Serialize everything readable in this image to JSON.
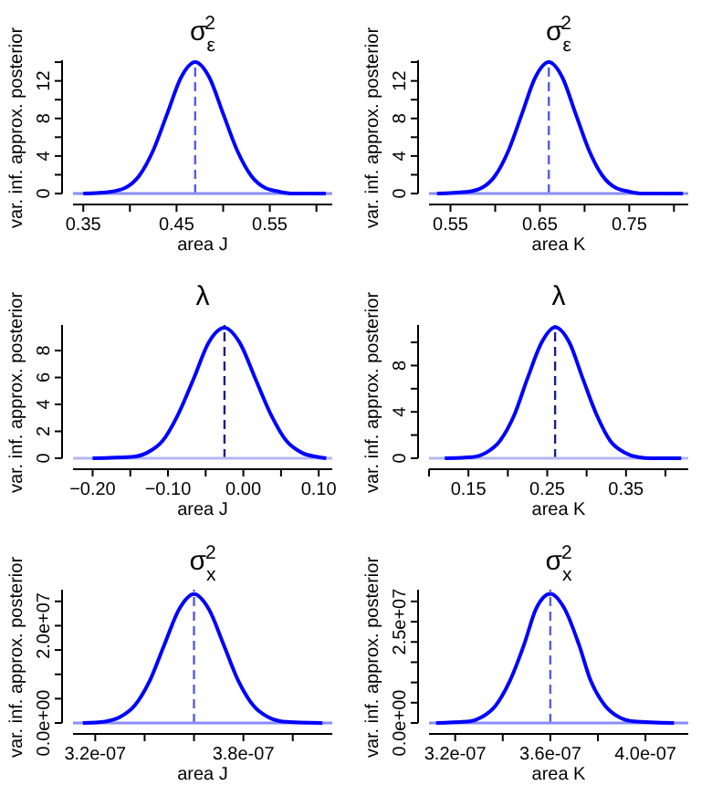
{
  "chart_data": [
    {
      "type": "line",
      "title": "σ$_{ε}$$^{2}$",
      "xlabel": "area J",
      "ylabel": "var. inf. approx. posterior",
      "x": [
        0.35,
        0.38,
        0.395,
        0.41,
        0.425,
        0.44,
        0.455,
        0.47,
        0.485,
        0.5,
        0.515,
        0.53,
        0.545,
        0.56,
        0.575,
        0.61
      ],
      "series": [
        {
          "color": "#0000ff",
          "values": [
            0,
            0.2,
            0.6,
            1.9,
            4.6,
            8.5,
            12.4,
            14,
            12.4,
            8.5,
            4.6,
            1.9,
            0.6,
            0.2,
            0,
            0
          ]
        }
      ],
      "xlim": [
        0.339,
        0.617
      ],
      "xticks": [
        0.35,
        {
          "value": 0.4,
          "label": null
        },
        0.45,
        {
          "value": 0.5,
          "label": null
        },
        0.55,
        {
          "value": 0.6,
          "label": null
        }
      ],
      "ylim": [
        0,
        14.2
      ],
      "yticks": [
        0,
        {
          "value": 2,
          "label": null
        },
        4,
        {
          "value": 6,
          "label": null
        },
        8,
        {
          "value": 10,
          "label": null
        },
        12,
        {
          "value": 14,
          "label": null
        }
      ],
      "ref_lines": [
        {
          "axis": "x",
          "value": 0.47,
          "color": "#5a5ae0",
          "line_style": "dashed"
        },
        {
          "axis": "y",
          "value": 0,
          "color": "#8c8cff"
        }
      ]
    },
    {
      "type": "line",
      "title": "σ$_{ε}$$^{2}$",
      "xlabel": "area K",
      "ylabel": "var. inf. approx. posterior",
      "x": [
        0.535,
        0.57,
        0.585,
        0.6,
        0.615,
        0.63,
        0.645,
        0.66,
        0.675,
        0.69,
        0.705,
        0.72,
        0.735,
        0.75,
        0.765,
        0.81
      ],
      "series": [
        {
          "color": "#0000ff",
          "values": [
            0,
            0.2,
            0.6,
            1.9,
            4.6,
            8.5,
            12.4,
            14,
            12.4,
            8.5,
            4.6,
            1.9,
            0.6,
            0.2,
            0,
            0
          ]
        }
      ],
      "xlim": [
        0.526,
        0.816
      ],
      "xticks": [
        0.55,
        {
          "value": 0.6,
          "label": null
        },
        0.65,
        {
          "value": 0.7,
          "label": null
        },
        0.75,
        {
          "value": 0.8,
          "label": null
        }
      ],
      "ylim": [
        0,
        14.2
      ],
      "yticks": [
        0,
        {
          "value": 2,
          "label": null
        },
        4,
        {
          "value": 6,
          "label": null
        },
        8,
        {
          "value": 10,
          "label": null
        },
        12,
        {
          "value": 14,
          "label": null
        }
      ],
      "ref_lines": [
        {
          "axis": "x",
          "value": 0.66,
          "color": "#5a5ae0",
          "line_style": "dashed"
        },
        {
          "axis": "y",
          "value": 0,
          "color": "#8c8cff"
        }
      ]
    },
    {
      "type": "line",
      "title": "λ",
      "xlabel": "area J",
      "ylabel": "var. inf. approx. posterior",
      "x": [
        -0.2,
        -0.148,
        -0.128,
        -0.107,
        -0.087,
        -0.066,
        -0.046,
        -0.025,
        -0.005,
        0.016,
        0.037,
        0.057,
        0.078,
        0.098,
        0.11
      ],
      "series": [
        {
          "color": "#0000ff",
          "values": [
            0,
            0.1,
            0.4,
            1.3,
            3.2,
            5.9,
            8.6,
            9.7,
            8.6,
            5.9,
            3.2,
            1.3,
            0.4,
            0.1,
            0
          ]
        }
      ],
      "xlim": [
        -0.226,
        0.118
      ],
      "xticks": [
        {
          "value": -0.2,
          "label": "−0.20"
        },
        {
          "value": -0.15,
          "label": null
        },
        {
          "value": -0.1,
          "label": "−0.10"
        },
        {
          "value": -0.05,
          "label": null
        },
        {
          "value": 0,
          "label": "0.00"
        },
        {
          "value": 0.05,
          "label": null
        },
        {
          "value": 0.1,
          "label": "0.10"
        }
      ],
      "ylim": [
        0,
        9.9
      ],
      "yticks": [
        0,
        2,
        4,
        6,
        8
      ],
      "ref_lines": [
        {
          "axis": "x",
          "value": -0.025,
          "color": "#1c1c8c",
          "line_style": "dashed"
        },
        {
          "axis": "y",
          "value": 0,
          "color": "#b4b8f0"
        }
      ]
    },
    {
      "type": "line",
      "title": "λ",
      "xlabel": "area K",
      "ylabel": "var. inf. approx. posterior",
      "x": [
        0.12,
        0.155,
        0.173,
        0.19,
        0.208,
        0.225,
        0.243,
        0.26,
        0.278,
        0.295,
        0.313,
        0.33,
        0.348,
        0.365,
        0.383,
        0.42
      ],
      "series": [
        {
          "color": "#0000ff",
          "values": [
            0,
            0.1,
            0.5,
            1.5,
            3.7,
            6.9,
            10,
            11.3,
            10,
            6.9,
            3.7,
            1.5,
            0.5,
            0.1,
            0,
            0
          ]
        }
      ],
      "xlim": [
        0.1,
        0.429
      ],
      "xticks": [
        {
          "value": 0.1,
          "label": null
        },
        0.15,
        {
          "value": 0.2,
          "label": null
        },
        0.25,
        {
          "value": 0.3,
          "label": null
        },
        0.35,
        {
          "value": 0.4,
          "label": null
        }
      ],
      "ylim": [
        0,
        11.5
      ],
      "yticks": [
        0,
        {
          "value": 2,
          "label": null
        },
        4,
        {
          "value": 6,
          "label": null
        },
        8,
        {
          "value": 10,
          "label": null
        }
      ],
      "ref_lines": [
        {
          "axis": "x",
          "value": 0.26,
          "color": "#1c1c8c",
          "line_style": "dashed"
        },
        {
          "axis": "y",
          "value": 0,
          "color": "#b4b8f0"
        }
      ]
    },
    {
      "type": "line",
      "title": "σ$_{x}$$^{2}$",
      "xlabel": "area J",
      "ylabel": "var. inf. approx. posterior",
      "x": [
        3.15e-07,
        3.24e-07,
        3.3e-07,
        3.36e-07,
        3.42e-07,
        3.48e-07,
        3.54e-07,
        3.6e-07,
        3.66e-07,
        3.72e-07,
        3.78e-07,
        3.84e-07,
        3.9e-07,
        3.96e-07,
        4.12e-07
      ],
      "series": [
        {
          "color": "#0000ff",
          "values": [
            0,
            300000.0,
            1200000.0,
            3600000.0,
            8600000.0,
            16100000.0,
            23400000.0,
            26500000.0,
            23400000.0,
            16100000.0,
            8600000.0,
            3600000.0,
            1200000.0,
            300000.0,
            0
          ]
        }
      ],
      "xlim": [
        3.11e-07,
        4.16e-07
      ],
      "xticks": [
        {
          "value": 3.2e-07,
          "label": "3.2e-07"
        },
        {
          "value": 3.4e-07,
          "label": null
        },
        {
          "value": 3.6e-07,
          "label": null
        },
        {
          "value": 3.8e-07,
          "label": "3.8e-07"
        },
        {
          "value": 4e-07,
          "label": null
        }
      ],
      "ylim": [
        0,
        27400000.0
      ],
      "yticks": [
        {
          "value": 0,
          "label": "0.0e+00"
        },
        {
          "value": 5000000.0,
          "label": null
        },
        {
          "value": 10000000.0,
          "label": null
        },
        {
          "value": 15000000.0,
          "label": null
        },
        {
          "value": 20000000.0,
          "label": "2.0e+07"
        },
        {
          "value": 25000000.0,
          "label": null
        }
      ],
      "ref_lines": [
        {
          "axis": "x",
          "value": 3.6e-07,
          "color": "#5a5ae0",
          "line_style": "dashed"
        },
        {
          "axis": "y",
          "value": 0,
          "color": "#8c8cff"
        }
      ]
    },
    {
      "type": "line",
      "title": "σ$_{x}$$^{2}$",
      "xlabel": "area K",
      "ylabel": "var. inf. approx. posterior",
      "x": [
        3.12e-07,
        3.26e-07,
        3.31e-07,
        3.37e-07,
        3.43e-07,
        3.49e-07,
        3.54e-07,
        3.6e-07,
        3.66e-07,
        3.72e-07,
        3.77e-07,
        3.83e-07,
        3.89e-07,
        3.95e-07,
        4.12e-07
      ],
      "series": [
        {
          "color": "#0000ff",
          "values": [
            0,
            400000.0,
            1400000.0,
            4300000.0,
            10400000.0,
            19400000.0,
            28200000.0,
            31900000.0,
            28200000.0,
            19400000.0,
            10400000.0,
            4300000.0,
            1400000.0,
            400000.0,
            0
          ]
        }
      ],
      "xlim": [
        3.09e-07,
        4.18e-07
      ],
      "xticks": [
        {
          "value": 3.2e-07,
          "label": "3.2e-07"
        },
        {
          "value": 3.4e-07,
          "label": null
        },
        {
          "value": 3.6e-07,
          "label": "3.6e-07"
        },
        {
          "value": 3.8e-07,
          "label": null
        },
        {
          "value": 4e-07,
          "label": "4.0e-07"
        }
      ],
      "ylim": [
        0,
        32900000.0
      ],
      "yticks": [
        {
          "value": 0,
          "label": "0.0e+00"
        },
        {
          "value": 5000000.0,
          "label": null
        },
        {
          "value": 10000000.0,
          "label": null
        },
        {
          "value": 15000000.0,
          "label": null
        },
        {
          "value": 20000000.0,
          "label": null
        },
        {
          "value": 25000000.0,
          "label": "2.5e+07"
        },
        {
          "value": 30000000.0,
          "label": null
        }
      ],
      "ref_lines": [
        {
          "axis": "x",
          "value": 3.6e-07,
          "color": "#5a5ae0",
          "line_style": "dashed"
        },
        {
          "axis": "y",
          "value": 0,
          "color": "#8c8cff"
        }
      ]
    }
  ]
}
